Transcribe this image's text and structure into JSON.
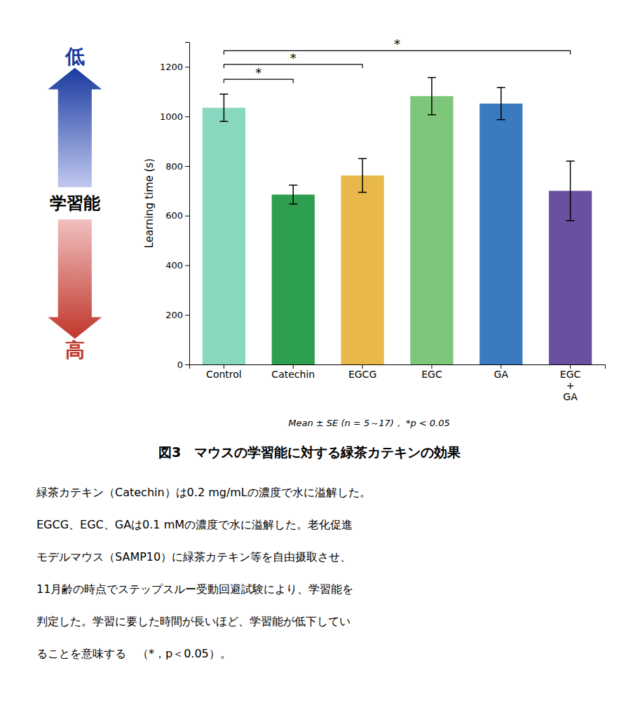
{
  "chart_data": {
    "type": "bar",
    "title": "図3　マウスの学習能に対する緑茶カテキンの効果",
    "categories": [
      "Control",
      "Catechin",
      "EGCG",
      "EGC",
      "GA",
      "EGC\n+\nGA"
    ],
    "values": [
      1035,
      685,
      762,
      1082,
      1052,
      700
    ],
    "errors": [
      55,
      38,
      68,
      75,
      65,
      120
    ],
    "colors": [
      "#88D8C0",
      "#2E9E4F",
      "#E8B84B",
      "#7EC67A",
      "#3A7BBF",
      "#6B4FA0"
    ],
    "ylabel": "Learning time (s)",
    "ylim": [
      0,
      1300
    ],
    "yticks": [
      0,
      200,
      400,
      600,
      800,
      1000,
      1200
    ],
    "grid": false,
    "sig_brackets": [
      {
        "x1": 0,
        "x2": 1,
        "y": 1150,
        "label": "*"
      },
      {
        "x1": 0,
        "x2": 2,
        "y": 1210,
        "label": "*"
      },
      {
        "x1": 0,
        "x2": 5,
        "y": 1265,
        "label": "*"
      }
    ],
    "arrow_label": "学習能",
    "arrows": [
      {
        "direction": "up",
        "label": "低",
        "colors": [
          "#C0C8F0",
          "#1A3A9E"
        ]
      },
      {
        "direction": "down",
        "label": "高",
        "colors": [
          "#F0C0C0",
          "#C0362A"
        ]
      }
    ],
    "caption": "Mean ± SE (n = 5～17)， *p < 0.05",
    "body": [
      "緑茶カテキン（Catechin）は0.2 mg/mLの濃度で水に溢解した。",
      "EGCG、EGC、GAは0.1 mMの濃度で水に溢解した。老化促進",
      "モデルマウス（SAMP10）に緑茶カテキン等を自由摄取させ、",
      "11月齢の時点でステップスルー受動回避試験により、学習能を",
      "判定した。学習に要した時間が長いほど、学習能が低下してい",
      "ることを意味する　（*，p＜0.05）。"
    ]
  }
}
